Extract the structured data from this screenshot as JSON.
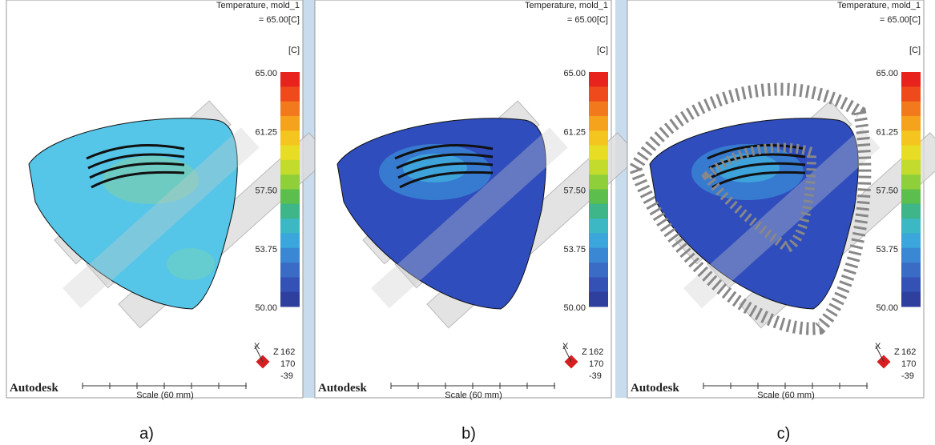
{
  "panels": [
    {
      "caption": "a)",
      "header": {
        "title": "Temperature, mold_1",
        "value": "= 65.00[C]"
      },
      "legend": {
        "unit": "[C]",
        "ticks": [
          "65.00",
          "61.25",
          "57.50",
          "53.75",
          "50.00"
        ]
      },
      "triad": {
        "x": "X",
        "z": "Z",
        "values": [
          "162",
          "170",
          "-39"
        ]
      },
      "logo": "Autodesk",
      "scale": "Scale (60 mm)"
    },
    {
      "caption": "b)",
      "header": {
        "title": "Temperature, mold_1",
        "value": "= 65.00[C]"
      },
      "legend": {
        "unit": "[C]",
        "ticks": [
          "65.00",
          "61.25",
          "57.50",
          "53.75",
          "50.00"
        ]
      },
      "triad": {
        "x": "X",
        "z": "Z",
        "values": [
          "162",
          "170",
          "-39"
        ]
      },
      "logo": "Autodesk",
      "scale": "Scale (60 mm)"
    },
    {
      "caption": "c)",
      "header": {
        "title": "Temperature, mold_1",
        "value": "= 65.00[C]"
      },
      "legend": {
        "unit": "[C]",
        "ticks": [
          "65.00",
          "61.25",
          "57.50",
          "53.75",
          "50.00"
        ]
      },
      "triad": {
        "x": "X",
        "z": "Z",
        "values": [
          "162",
          "170",
          "-39"
        ]
      },
      "logo": "Autodesk",
      "scale": "Scale (60 mm)"
    }
  ]
}
